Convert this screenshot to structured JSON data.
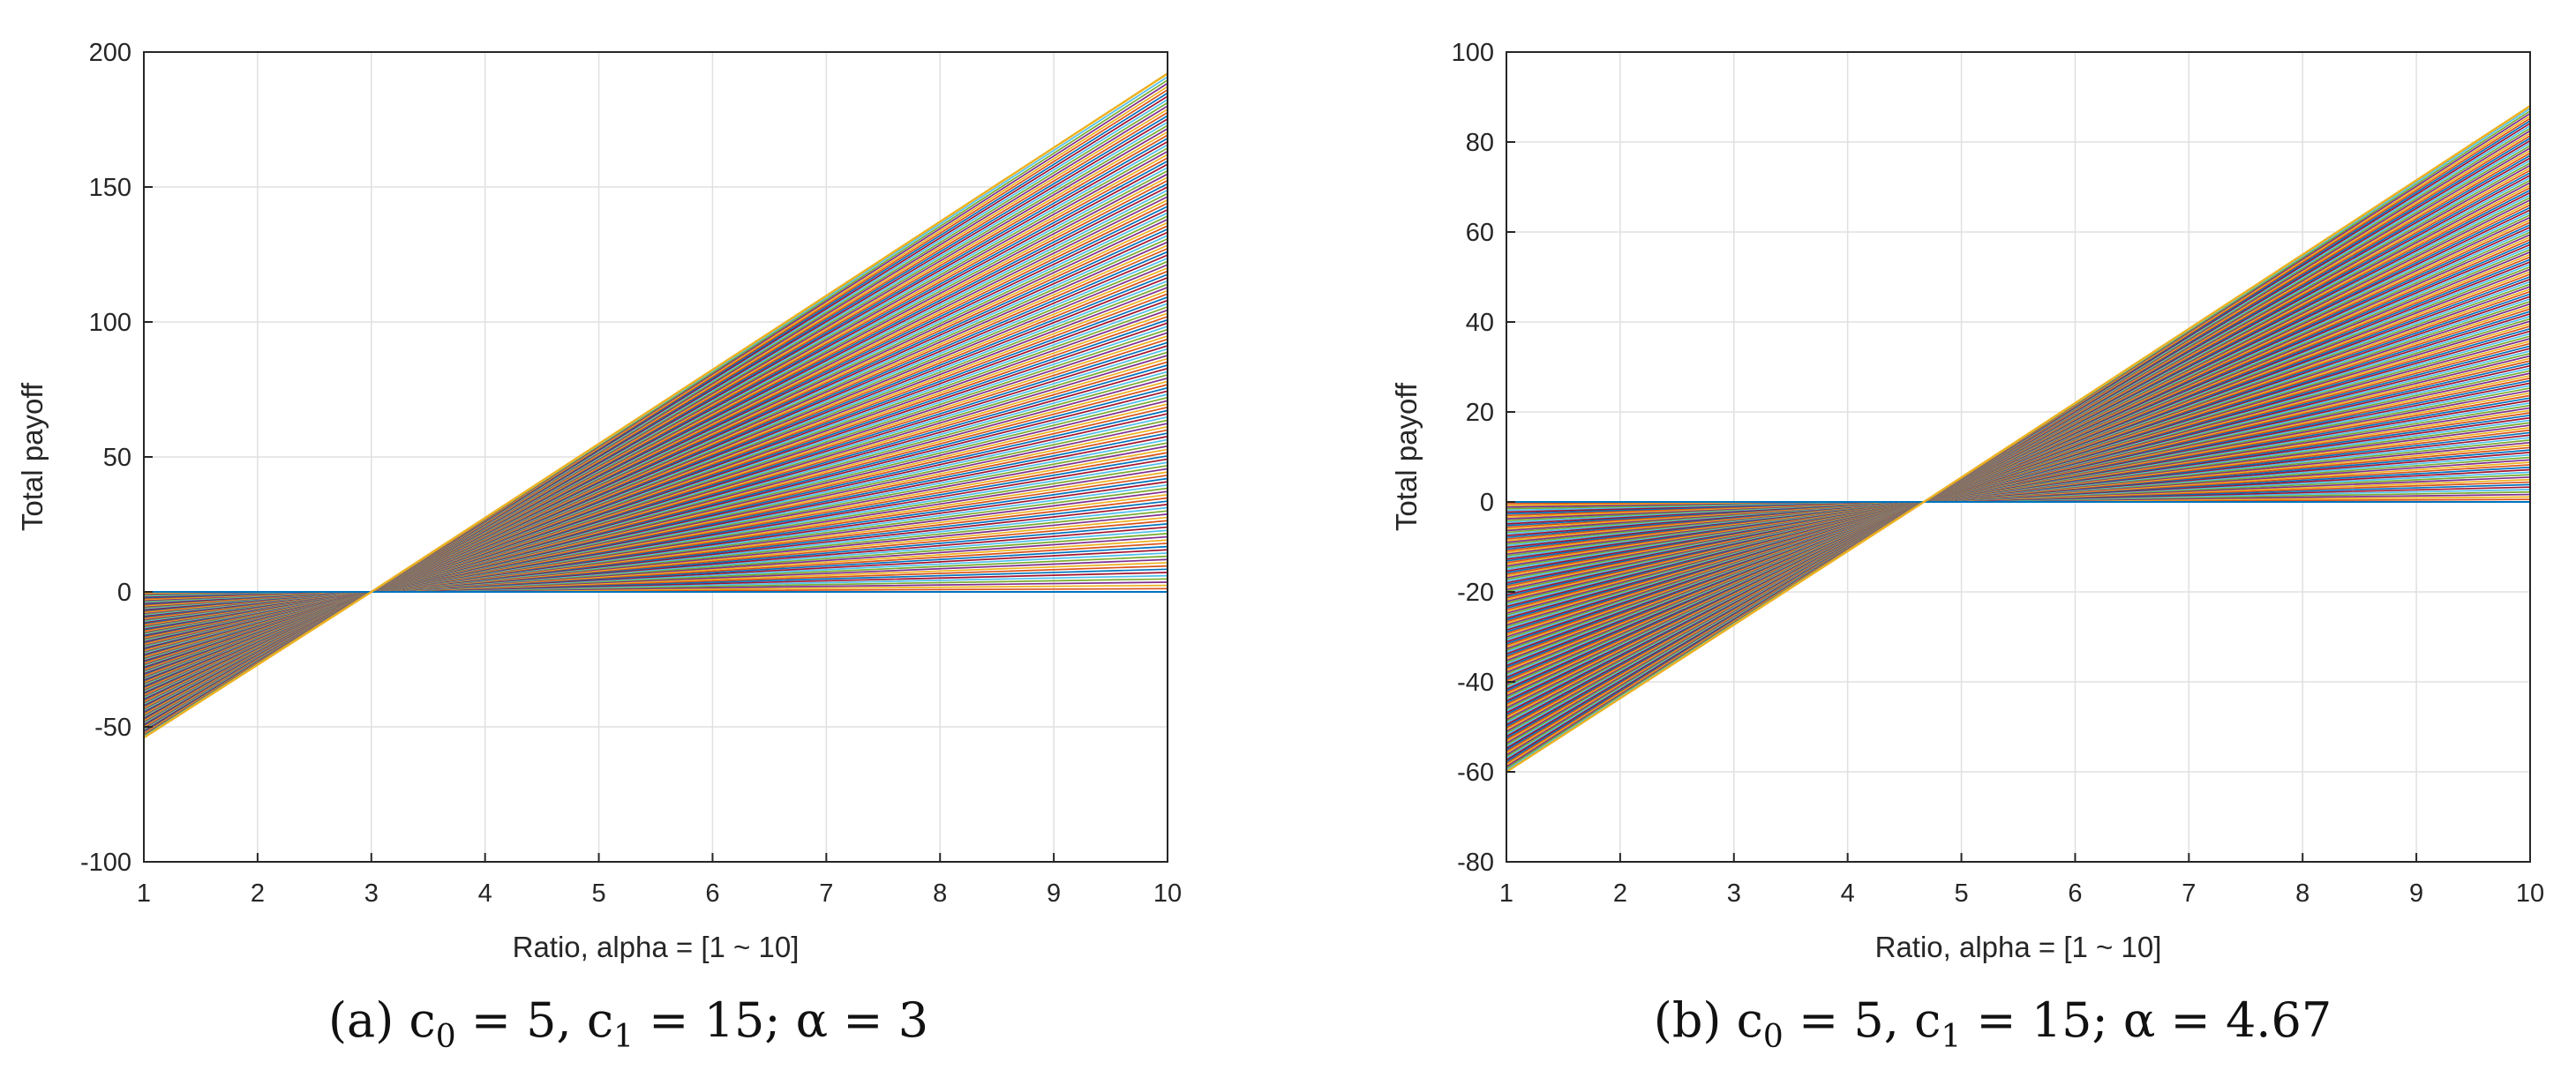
{
  "chart_data": [
    {
      "type": "line",
      "id": "a",
      "caption": {
        "prefix": "(a) c",
        "sub0": "0",
        "mid1": " = 5, c",
        "sub1": "1",
        "suffix": " = 15; α = 3"
      },
      "xlabel": "Ratio, alpha = [1 ~ 10]",
      "ylabel": "Total payoff",
      "xlim": [
        1,
        10
      ],
      "ylim": [
        -100,
        200
      ],
      "xticks": [
        1,
        2,
        3,
        4,
        5,
        6,
        7,
        8,
        9,
        10
      ],
      "yticks": [
        -100,
        -50,
        0,
        50,
        100,
        150,
        200
      ],
      "grid": true,
      "crossover_alpha": 3,
      "family_count": 160,
      "envelope": {
        "x": [
          1,
          3,
          10
        ],
        "y": [
          -54,
          0,
          192
        ]
      },
      "description_series": [
        {
          "name": "lower envelope",
          "x": [
            1,
            10
          ],
          "y": [
            -54,
            192
          ]
        },
        {
          "name": "flat line",
          "x": [
            1,
            10
          ],
          "y": [
            0,
            0
          ]
        }
      ]
    },
    {
      "type": "line",
      "id": "b",
      "caption": {
        "prefix": "(b) c",
        "sub0": "0",
        "mid1": " = 5, c",
        "sub1": "1",
        "suffix": " = 15; α = 4.67"
      },
      "xlabel": "Ratio, alpha = [1 ~ 10]",
      "ylabel": "Total payoff",
      "xlim": [
        1,
        10
      ],
      "ylim": [
        -80,
        100
      ],
      "xticks": [
        1,
        2,
        3,
        4,
        5,
        6,
        7,
        8,
        9,
        10
      ],
      "yticks": [
        -80,
        -60,
        -40,
        -20,
        0,
        20,
        40,
        60,
        80,
        100
      ],
      "grid": true,
      "crossover_alpha": 4.67,
      "family_count": 160,
      "envelope": {
        "x": [
          1,
          4.67,
          10
        ],
        "y": [
          -60,
          0,
          88
        ]
      },
      "description_series": [
        {
          "name": "lower envelope",
          "x": [
            1,
            10
          ],
          "y": [
            -60,
            88
          ]
        },
        {
          "name": "flat line",
          "x": [
            1,
            10
          ],
          "y": [
            0,
            0
          ]
        }
      ]
    }
  ],
  "colors": {
    "series_cycle": [
      "#0072BD",
      "#D95319",
      "#EDB120",
      "#7E2F8E",
      "#77AC30",
      "#4DBEEE",
      "#A2142F"
    ],
    "grid": "#e0e0e0",
    "axis": "#262626",
    "text": "#262626"
  }
}
